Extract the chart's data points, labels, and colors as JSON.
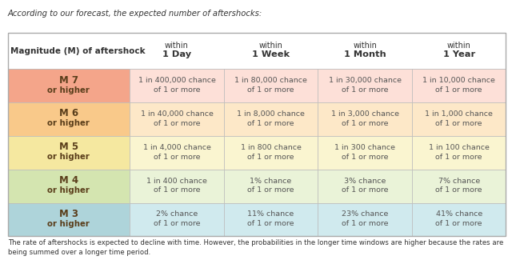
{
  "title_text": "According to our forecast, the expected number of aftershocks:",
  "footer_text": "The rate of aftershocks is expected to decline with time. However, the probabilities in the longer time windows are higher because the rates are\nbeing summed over a longer time period.",
  "col_headers": [
    [
      "within",
      "1 Day"
    ],
    [
      "within",
      "1 Week"
    ],
    [
      "within",
      "1 Month"
    ],
    [
      "within",
      "1 Year"
    ]
  ],
  "row_labels": [
    [
      "M 7",
      "or higher"
    ],
    [
      "M 6",
      "or higher"
    ],
    [
      "M 5",
      "or higher"
    ],
    [
      "M 4",
      "or higher"
    ],
    [
      "M 3",
      "or higher"
    ]
  ],
  "row_colors": [
    "#f4a58a",
    "#f9c98a",
    "#f5e8a0",
    "#d4e5b0",
    "#aed4da"
  ],
  "row_colors_light": [
    "#fde0d8",
    "#fde8c8",
    "#faf5d0",
    "#eaf3d8",
    "#d0eaee"
  ],
  "cell_data": [
    [
      "1 in 400,000 chance\nof 1 or more",
      "1 in 80,000 chance\nof 1 or more",
      "1 in 30,000 chance\nof 1 or more",
      "1 in 10,000 chance\nof 1 or more"
    ],
    [
      "1 in 40,000 chance\nof 1 or more",
      "1 in 8,000 chance\nof 1 or more",
      "1 in 3,000 chance\nof 1 or more",
      "1 in 1,000 chance\nof 1 or more"
    ],
    [
      "1 in 4,000 chance\nof 1 or more",
      "1 in 800 chance\nof 1 or more",
      "1 in 300 chance\nof 1 or more",
      "1 in 100 chance\nof 1 or more"
    ],
    [
      "1 in 400 chance\nof 1 or more",
      "1% chance\nof 1 or more",
      "3% chance\nof 1 or more",
      "7% chance\nof 1 or more"
    ],
    [
      "2% chance\nof 1 or more",
      "11% chance\nof 1 or more",
      "23% chance\nof 1 or more",
      "41% chance\nof 1 or more"
    ]
  ],
  "bg_color": "#ffffff",
  "header_bg": "#ffffff",
  "border_color": "#cccccc",
  "text_color": "#333333",
  "label_color": "#5a3e1b",
  "cell_text_color": "#555555"
}
